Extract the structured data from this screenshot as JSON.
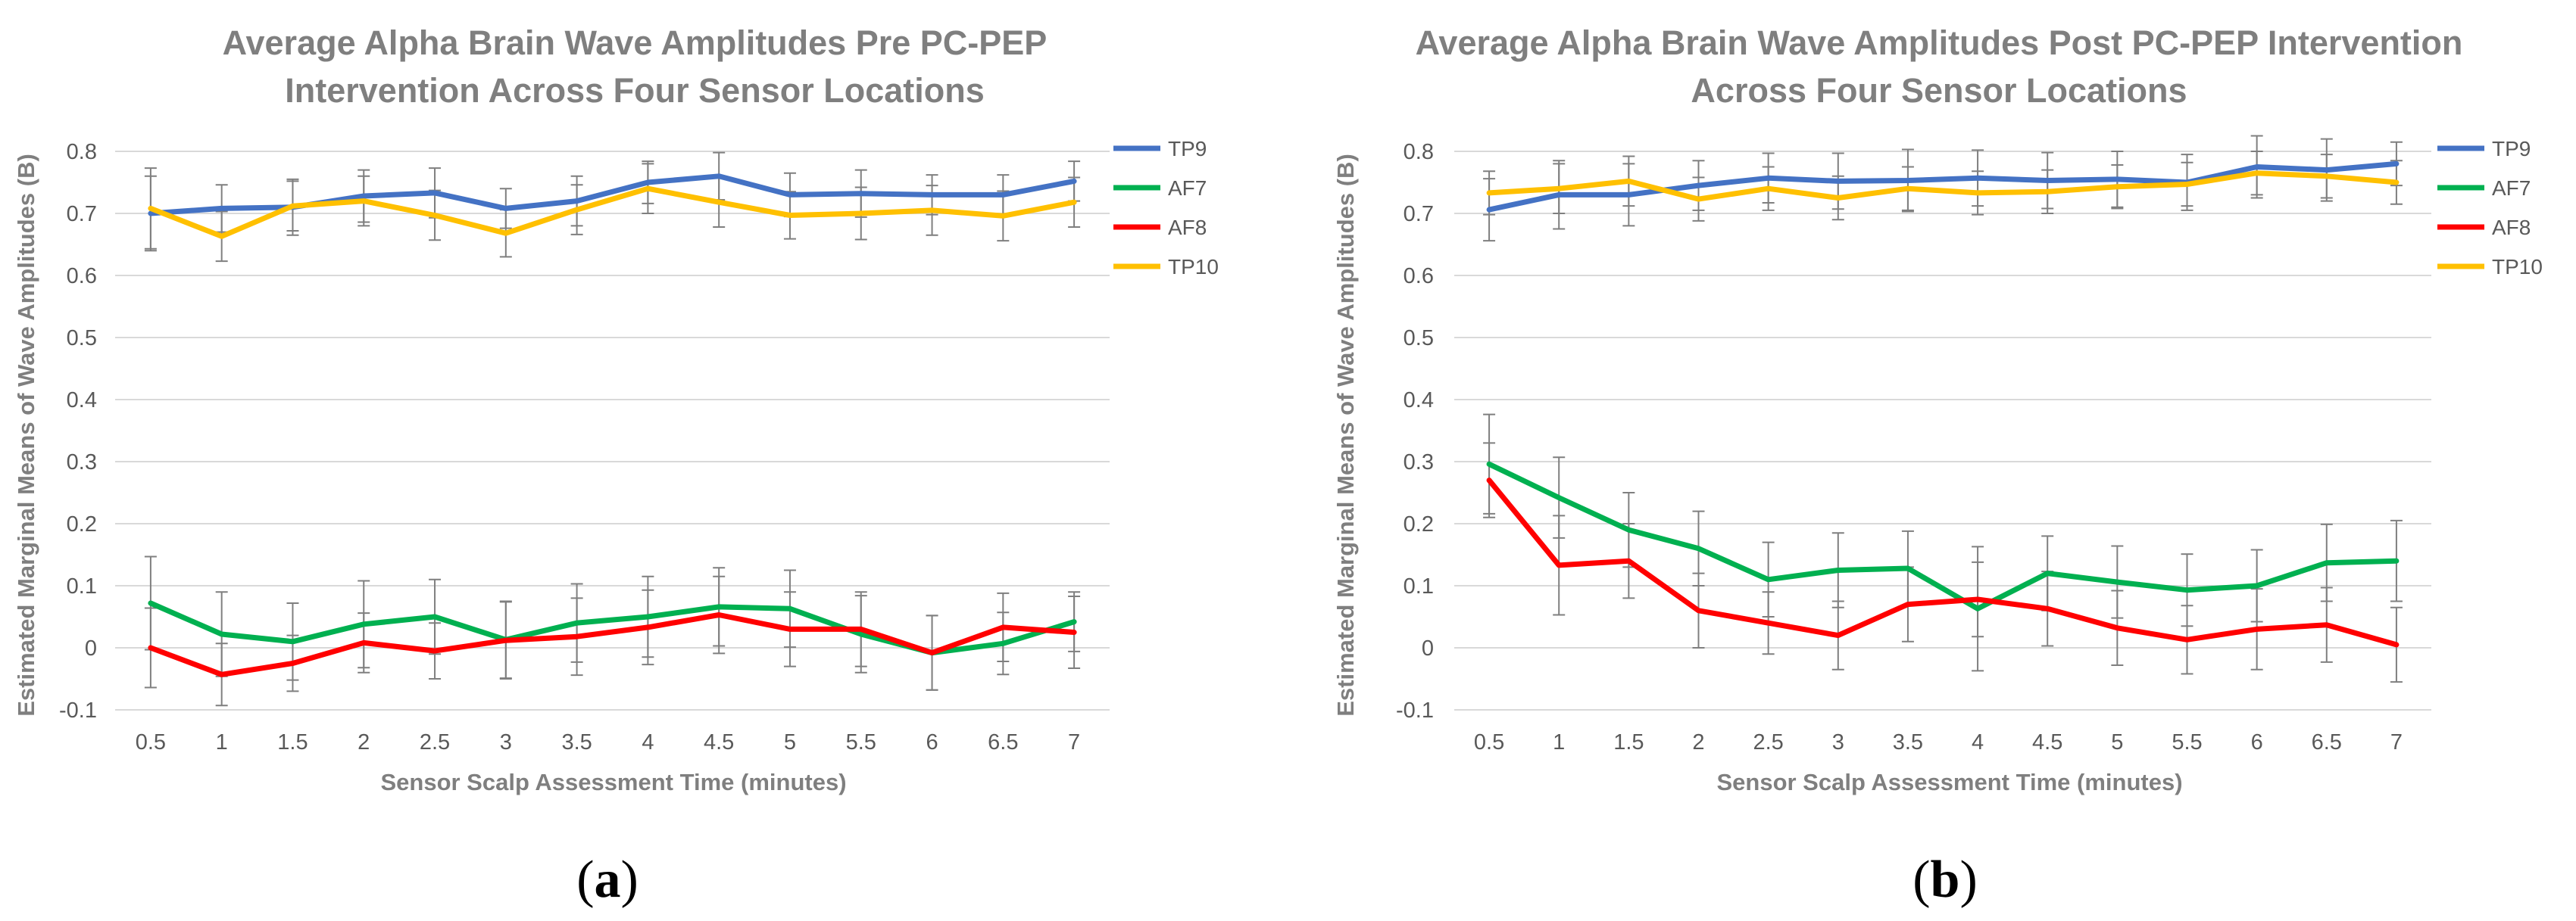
{
  "chart_data": [
    {
      "type": "line",
      "panel_label": "a",
      "title": "Average Alpha Brain Wave Amplitudes Pre PC-PEP Intervention Across Four Sensor Locations",
      "title_lines": [
        "Average Alpha Brain Wave Amplitudes Pre PC-PEP",
        "Intervention Across Four Sensor Locations"
      ],
      "xlabel": "Sensor Scalp Assessment Time (minutes)",
      "ylabel": "Estimated Marginal Means of Wave Amplitudes (B)",
      "categories": [
        "0.5",
        "1",
        "1.5",
        "2",
        "2.5",
        "3",
        "3.5",
        "4",
        "4.5",
        "5",
        "5.5",
        "6",
        "6.5",
        "7"
      ],
      "y_ticks": [
        "-0.1",
        "0",
        "0.1",
        "0.2",
        "0.3",
        "0.4",
        "0.5",
        "0.6",
        "0.7",
        "0.8"
      ],
      "ylim": [
        -0.1,
        0.8
      ],
      "grid": "horizontal",
      "legend_position": "right",
      "series": [
        {
          "name": "TP9",
          "color": "#4472c4",
          "values": [
            0.7,
            0.708,
            0.71,
            0.728,
            0.733,
            0.708,
            0.72,
            0.75,
            0.76,
            0.73,
            0.732,
            0.73,
            0.73,
            0.752
          ],
          "error": [
            0.06,
            0.038,
            0.045,
            0.042,
            0.04,
            0.032,
            0.04,
            0.034,
            0.038,
            0.035,
            0.038,
            0.032,
            0.032,
            0.032
          ]
        },
        {
          "name": "AF7",
          "color": "#00b050",
          "values": [
            0.072,
            0.022,
            0.01,
            0.038,
            0.05,
            0.013,
            0.04,
            0.05,
            0.066,
            0.063,
            0.022,
            -0.008,
            0.007,
            0.042
          ],
          "error": [
            0.075,
            0.068,
            0.062,
            0.07,
            0.06,
            0.062,
            0.063,
            0.065,
            0.063,
            0.062,
            0.062,
            0.06,
            0.05,
            0.048
          ]
        },
        {
          "name": "AF8",
          "color": "#ff0000",
          "values": [
            0.0,
            -0.043,
            -0.025,
            0.008,
            -0.005,
            0.012,
            0.018,
            0.033,
            0.053,
            0.03,
            0.03,
            -0.008,
            0.033,
            0.025
          ],
          "error": [
            0.064,
            0.05,
            0.045,
            0.048,
            0.045,
            0.062,
            0.062,
            0.06,
            0.062,
            0.06,
            0.06,
            0.06,
            0.055,
            0.058
          ]
        },
        {
          "name": "TP10",
          "color": "#ffc000",
          "values": [
            0.708,
            0.663,
            0.712,
            0.72,
            0.697,
            0.668,
            0.706,
            0.74,
            0.718,
            0.697,
            0.7,
            0.705,
            0.696,
            0.718
          ],
          "error": [
            0.065,
            0.04,
            0.04,
            0.04,
            0.04,
            0.038,
            0.04,
            0.04,
            0.04,
            0.038,
            0.042,
            0.04,
            0.04,
            0.04
          ]
        }
      ]
    },
    {
      "type": "line",
      "panel_label": "b",
      "title": "Average Alpha Brain Wave Amplitudes Post PC-PEP Intervention Across Four Sensor Locations",
      "title_lines": [
        "Average Alpha Brain Wave Amplitudes Post PC-PEP Intervention",
        "Across Four Sensor Locations"
      ],
      "xlabel": "Sensor Scalp Assessment Time (minutes)",
      "ylabel": "Estimated Marginal Means of Wave Amplitudes (B)",
      "categories": [
        "0.5",
        "1",
        "1.5",
        "2",
        "2.5",
        "3",
        "3.5",
        "4",
        "4.5",
        "5",
        "5.5",
        "6",
        "6.5",
        "7"
      ],
      "y_ticks": [
        "-0.1",
        "0",
        "0.1",
        "0.2",
        "0.3",
        "0.4",
        "0.5",
        "0.6",
        "0.7",
        "0.8"
      ],
      "ylim": [
        -0.1,
        0.8
      ],
      "grid": "horizontal",
      "legend_position": "right",
      "series": [
        {
          "name": "TP9",
          "color": "#4472c4",
          "values": [
            0.706,
            0.73,
            0.73,
            0.745,
            0.757,
            0.752,
            0.753,
            0.757,
            0.753,
            0.755,
            0.75,
            0.775,
            0.77,
            0.78
          ],
          "error": [
            0.05,
            0.055,
            0.05,
            0.04,
            0.04,
            0.045,
            0.05,
            0.045,
            0.045,
            0.045,
            0.045,
            0.05,
            0.05,
            0.035
          ]
        },
        {
          "name": "AF7",
          "color": "#00b050",
          "values": [
            0.296,
            0.242,
            0.19,
            0.16,
            0.11,
            0.125,
            0.128,
            0.063,
            0.12,
            0.106,
            0.093,
            0.1,
            0.137,
            0.14
          ],
          "error": [
            0.08,
            0.065,
            0.06,
            0.06,
            0.06,
            0.06,
            0.06,
            0.1,
            0.06,
            0.058,
            0.058,
            0.058,
            0.062,
            0.065
          ]
        },
        {
          "name": "AF8",
          "color": "#ff0000",
          "values": [
            0.27,
            0.133,
            0.14,
            0.06,
            0.04,
            0.02,
            0.07,
            0.078,
            0.063,
            0.032,
            0.013,
            0.03,
            0.037,
            0.005
          ],
          "error": [
            0.06,
            0.08,
            0.06,
            0.06,
            0.05,
            0.055,
            0.06,
            0.06,
            0.06,
            0.06,
            0.055,
            0.065,
            0.06,
            0.06
          ]
        },
        {
          "name": "TP10",
          "color": "#ffc000",
          "values": [
            0.733,
            0.74,
            0.752,
            0.723,
            0.74,
            0.725,
            0.74,
            0.733,
            0.735,
            0.743,
            0.747,
            0.765,
            0.76,
            0.75
          ],
          "error": [
            0.035,
            0.04,
            0.04,
            0.035,
            0.035,
            0.035,
            0.035,
            0.035,
            0.035,
            0.035,
            0.035,
            0.035,
            0.035,
            0.035
          ]
        }
      ]
    }
  ]
}
